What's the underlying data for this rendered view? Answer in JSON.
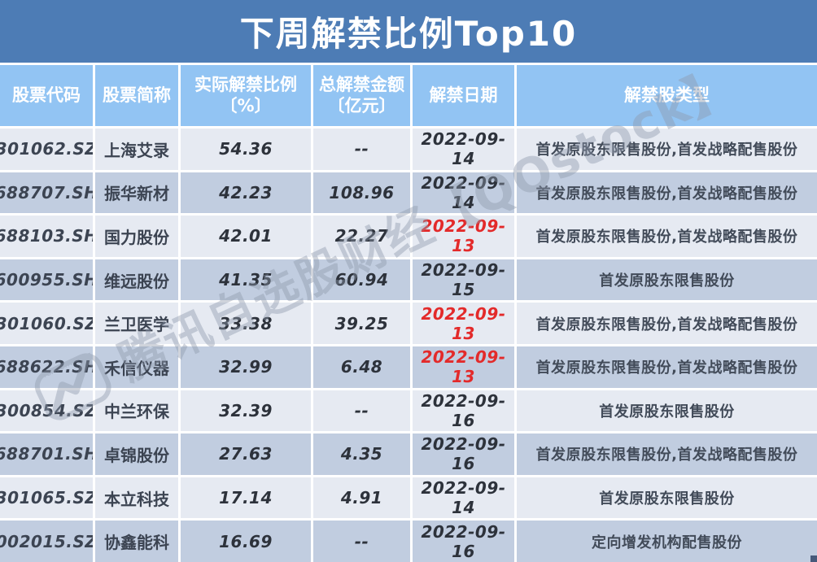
{
  "title": "下周解禁比例Top10",
  "colors": {
    "title_bar": "#4d7cb5",
    "column_header": "#92c4f3",
    "row_light": "#e6eaf2",
    "row_dark": "#c1cde0",
    "separator": "#ffffff",
    "date_alert": "#e32a2a",
    "text_dark": "#3c4452",
    "watermark": "#8e99ab"
  },
  "watermark": {
    "text": "腾讯自选股财经【QQstock】",
    "logo": "tencent-zixuangu-logo",
    "logo_brand_label": "Tencent"
  },
  "chart_data": {
    "type": "table",
    "title": "下周解禁比例Top10",
    "columns": [
      {
        "key": "code",
        "label": "股票代码"
      },
      {
        "key": "name",
        "label": "股票简称"
      },
      {
        "key": "ratio",
        "label": "实际解禁比例\n〔%〕"
      },
      {
        "key": "amount",
        "label": "总解禁金额\n〔亿元〕"
      },
      {
        "key": "date",
        "label": "解禁日期"
      },
      {
        "key": "type",
        "label": "解禁股类型"
      }
    ],
    "rows": [
      {
        "code": "301062.SZ",
        "name": "上海艾录",
        "ratio": "54.36",
        "amount": "--",
        "date": "2022-09-14",
        "date_alert": false,
        "type": "首发原股东限售股份,首发战略配售股份"
      },
      {
        "code": "688707.SH",
        "name": "振华新材",
        "ratio": "42.23",
        "amount": "108.96",
        "date": "2022-09-14",
        "date_alert": false,
        "type": "首发原股东限售股份,首发战略配售股份"
      },
      {
        "code": "688103.SH",
        "name": "国力股份",
        "ratio": "42.01",
        "amount": "22.27",
        "date": "2022-09-13",
        "date_alert": true,
        "type": "首发原股东限售股份,首发战略配售股份"
      },
      {
        "code": "600955.SH",
        "name": "维远股份",
        "ratio": "41.35",
        "amount": "60.94",
        "date": "2022-09-15",
        "date_alert": false,
        "type": "首发原股东限售股份"
      },
      {
        "code": "301060.SZ",
        "name": "兰卫医学",
        "ratio": "33.38",
        "amount": "39.25",
        "date": "2022-09-13",
        "date_alert": true,
        "type": "首发原股东限售股份,首发战略配售股份"
      },
      {
        "code": "688622.SH",
        "name": "禾信仪器",
        "ratio": "32.99",
        "amount": "6.48",
        "date": "2022-09-13",
        "date_alert": true,
        "type": "首发原股东限售股份,首发战略配售股份"
      },
      {
        "code": "300854.SZ",
        "name": "中兰环保",
        "ratio": "32.39",
        "amount": "--",
        "date": "2022-09-16",
        "date_alert": false,
        "type": "首发原股东限售股份"
      },
      {
        "code": "688701.SH",
        "name": "卓锦股份",
        "ratio": "27.63",
        "amount": "4.35",
        "date": "2022-09-16",
        "date_alert": false,
        "type": "首发原股东限售股份,首发战略配售股份"
      },
      {
        "code": "301065.SZ",
        "name": "本立科技",
        "ratio": "17.14",
        "amount": "4.91",
        "date": "2022-09-14",
        "date_alert": false,
        "type": "首发原股东限售股份"
      },
      {
        "code": "002015.SZ",
        "name": "协鑫能科",
        "ratio": "16.69",
        "amount": "--",
        "date": "2022-09-16",
        "date_alert": false,
        "type": "定向增发机构配售股份"
      }
    ]
  }
}
